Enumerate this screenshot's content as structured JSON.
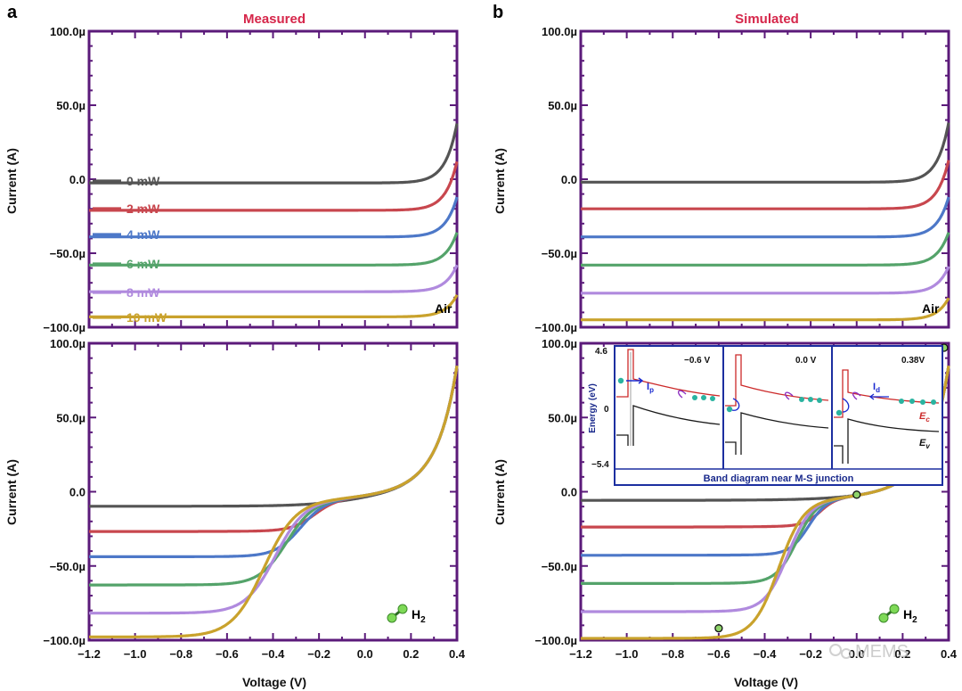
{
  "figure": {
    "panel_labels": [
      "a",
      "b"
    ],
    "column_titles": [
      "Measured",
      "Simulated"
    ],
    "watermark": "MEMS",
    "colors": {
      "axis": "#5b1a7a",
      "title": "#d6264a",
      "inset_frame": "#1c2fa0"
    }
  },
  "chart_data": [
    {
      "id": "a_air",
      "type": "line",
      "panel": "a",
      "title": "Measured",
      "xlabel": "Voltage (V)",
      "ylabel": "Current (A)",
      "xlim": [
        -1.2,
        0.4
      ],
      "ylim": [
        -100,
        100
      ],
      "y_unit": "µA",
      "yticks": [
        "100.0µ",
        "50.0µ",
        "0.0",
        "−50.0µ",
        "−100.0µ"
      ],
      "xticks": [],
      "environment": "Air",
      "series": [
        {
          "name": "0 mW",
          "color": "#545454",
          "plateau": -0.5,
          "rise_v": 0.25,
          "k": 20
        },
        {
          "name": "2 mW",
          "color": "#c8474e",
          "plateau": -19,
          "rise_v": 0.26,
          "k": 20
        },
        {
          "name": "4 mW",
          "color": "#4d78c8",
          "plateau": -37,
          "rise_v": 0.27,
          "k": 20
        },
        {
          "name": "6 mW",
          "color": "#54a36a",
          "plateau": -56,
          "rise_v": 0.28,
          "k": 20
        },
        {
          "name": "8 mW",
          "color": "#b08ade",
          "plateau": -74,
          "rise_v": 0.29,
          "k": 20
        },
        {
          "name": "10 mW",
          "color": "#c9a22c",
          "plateau": -91,
          "rise_v": 0.3,
          "k": 20
        }
      ]
    },
    {
      "id": "a_h2",
      "type": "line",
      "panel": "a",
      "xlabel": "Voltage (V)",
      "ylabel": "Current (A)",
      "xlim": [
        -1.2,
        0.4
      ],
      "ylim": [
        -100,
        100
      ],
      "y_unit": "µA",
      "yticks": [
        "100.0µ",
        "50.0µ",
        "0.0",
        "−50.0µ",
        "−100.0µ"
      ],
      "xticks": [
        "−1.2",
        "−1.0",
        "−0.8",
        "−0.6",
        "−0.4",
        "−0.2",
        "0.0",
        "0.2",
        "0.4"
      ],
      "environment": "H2",
      "series": [
        {
          "name": "0 mW",
          "color": "#545454",
          "plateau": -4,
          "v_half": -0.08,
          "w": 0.1
        },
        {
          "name": "2 mW",
          "color": "#c8474e",
          "plateau": -21,
          "v_half": -0.22,
          "w": 0.05
        },
        {
          "name": "4 mW",
          "color": "#4d78c8",
          "plateau": -38,
          "v_half": -0.28,
          "w": 0.055
        },
        {
          "name": "6 mW",
          "color": "#54a36a",
          "plateau": -57,
          "v_half": -0.34,
          "w": 0.06
        },
        {
          "name": "8 mW",
          "color": "#b08ade",
          "plateau": -76,
          "v_half": -0.39,
          "w": 0.065
        },
        {
          "name": "10 mW",
          "color": "#c9a22c",
          "plateau": -92,
          "v_half": -0.44,
          "w": 0.07
        }
      ]
    },
    {
      "id": "b_air",
      "type": "line",
      "panel": "b",
      "title": "Simulated",
      "xlabel": "Voltage (V)",
      "ylabel": "Current (A)",
      "xlim": [
        -1.2,
        0.4
      ],
      "ylim": [
        -100,
        100
      ],
      "y_unit": "µA",
      "yticks": [
        "100.0µ",
        "50.0µ",
        "0.0",
        "−50.0µ",
        "−100.0µ"
      ],
      "xticks": [],
      "environment": "Air",
      "series": [
        {
          "name": "0 mW",
          "color": "#545454",
          "plateau": 0,
          "rise_v": 0.25,
          "k": 20
        },
        {
          "name": "2 mW",
          "color": "#c8474e",
          "plateau": -18,
          "rise_v": 0.26,
          "k": 20
        },
        {
          "name": "4 mW",
          "color": "#4d78c8",
          "plateau": -37,
          "rise_v": 0.27,
          "k": 20
        },
        {
          "name": "6 mW",
          "color": "#54a36a",
          "plateau": -56,
          "rise_v": 0.28,
          "k": 20
        },
        {
          "name": "8 mW",
          "color": "#b08ade",
          "plateau": -75,
          "rise_v": 0.29,
          "k": 20
        },
        {
          "name": "10 mW",
          "color": "#c9a22c",
          "plateau": -93,
          "rise_v": 0.3,
          "k": 20
        }
      ]
    },
    {
      "id": "b_h2",
      "type": "line",
      "panel": "b",
      "xlabel": "Voltage (V)",
      "ylabel": "Current (A)",
      "xlim": [
        -1.2,
        0.4
      ],
      "ylim": [
        -100,
        100
      ],
      "y_unit": "µA",
      "yticks": [
        "100.0µ",
        "50.0µ",
        "0.0",
        "−50.0µ",
        "−100.0µ"
      ],
      "xticks": [
        "−1.2",
        "−1.0",
        "−0.8",
        "−0.6",
        "−0.4",
        "−0.2",
        "0.0",
        "0.2",
        "0.4"
      ],
      "environment": "H2",
      "marked_points": [
        {
          "v": -0.6,
          "i": -92
        },
        {
          "v": 0.0,
          "i": -2
        },
        {
          "v": 0.38,
          "i": 97
        }
      ],
      "series": [
        {
          "name": "0 mW",
          "color": "#545454",
          "plateau": 0,
          "v_half": -0.2,
          "w": 0.05
        },
        {
          "name": "2 mW",
          "color": "#c8474e",
          "plateau": -18,
          "v_half": -0.16,
          "w": 0.035
        },
        {
          "name": "4 mW",
          "color": "#4d78c8",
          "plateau": -37,
          "v_half": -0.21,
          "w": 0.04
        },
        {
          "name": "6 mW",
          "color": "#54a36a",
          "plateau": -56,
          "v_half": -0.26,
          "w": 0.045
        },
        {
          "name": "8 mW",
          "color": "#b08ade",
          "plateau": -75,
          "v_half": -0.3,
          "w": 0.05
        },
        {
          "name": "10 mW",
          "color": "#c9a22c",
          "plateau": -93,
          "v_half": -0.34,
          "w": 0.055
        }
      ],
      "inset": {
        "caption": "Band diagram near M-S junction",
        "ylabel": "Energy (eV)",
        "yticks": [
          "4.6",
          "0",
          "−5.4"
        ],
        "sub_panels": [
          "−0.6 V",
          "0.0 V",
          "0.38V"
        ],
        "labels": {
          "ip": "I",
          "ip_sub": "p",
          "id": "I",
          "id_sub": "d",
          "ec": "E",
          "ec_sub": "c",
          "ev": "E",
          "ev_sub": "v"
        }
      }
    }
  ]
}
